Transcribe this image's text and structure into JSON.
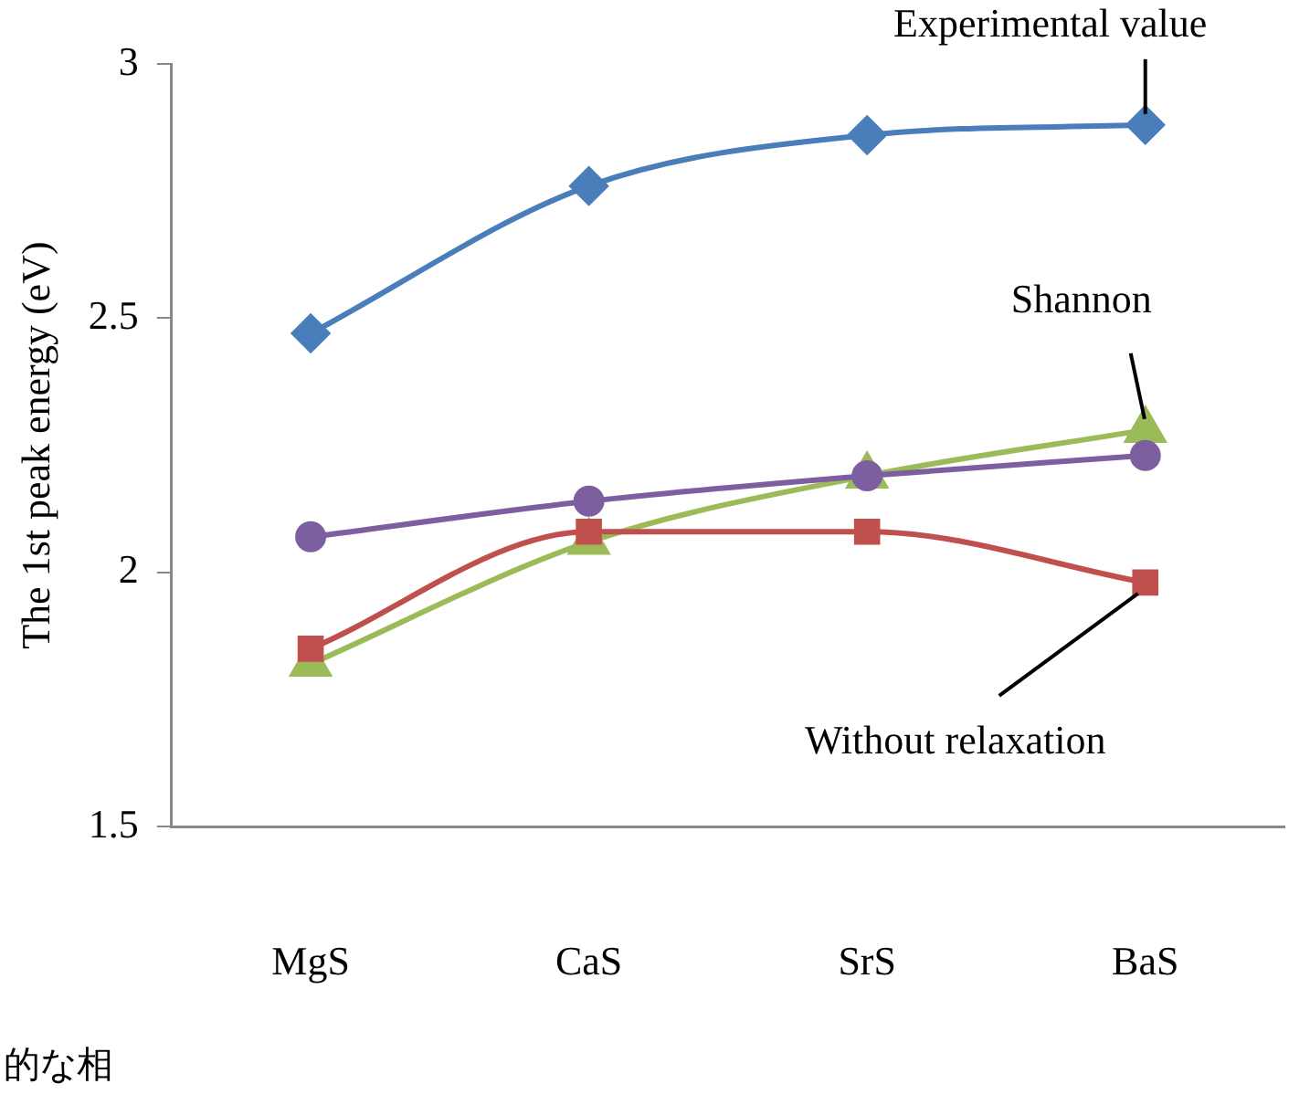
{
  "chart_data": {
    "type": "line",
    "ylabel": "The 1st peak energy (eV)",
    "categories": [
      "MgS",
      "CaS",
      "SrS",
      "BaS"
    ],
    "series": [
      {
        "name": "Experimental value",
        "color": "#4a7ebb",
        "marker": "diamond",
        "values": [
          2.47,
          2.76,
          2.86,
          2.88
        ]
      },
      {
        "color": "#7d5fa0",
        "marker": "circle",
        "values": [
          2.07,
          2.14,
          2.19,
          2.23
        ]
      },
      {
        "name": "Shannon",
        "color": "#9bbb59",
        "marker": "triangle",
        "values": [
          1.82,
          2.06,
          2.19,
          2.28
        ]
      },
      {
        "name": "Without relaxation",
        "color": "#c0504d",
        "marker": "square",
        "values": [
          1.85,
          2.08,
          2.08,
          1.98
        ]
      }
    ],
    "ylim": [
      1.5,
      3
    ],
    "yticks": [
      1.5,
      2,
      2.5,
      3
    ],
    "grid": false,
    "legend": false,
    "annotations": [
      "的な相"
    ]
  }
}
